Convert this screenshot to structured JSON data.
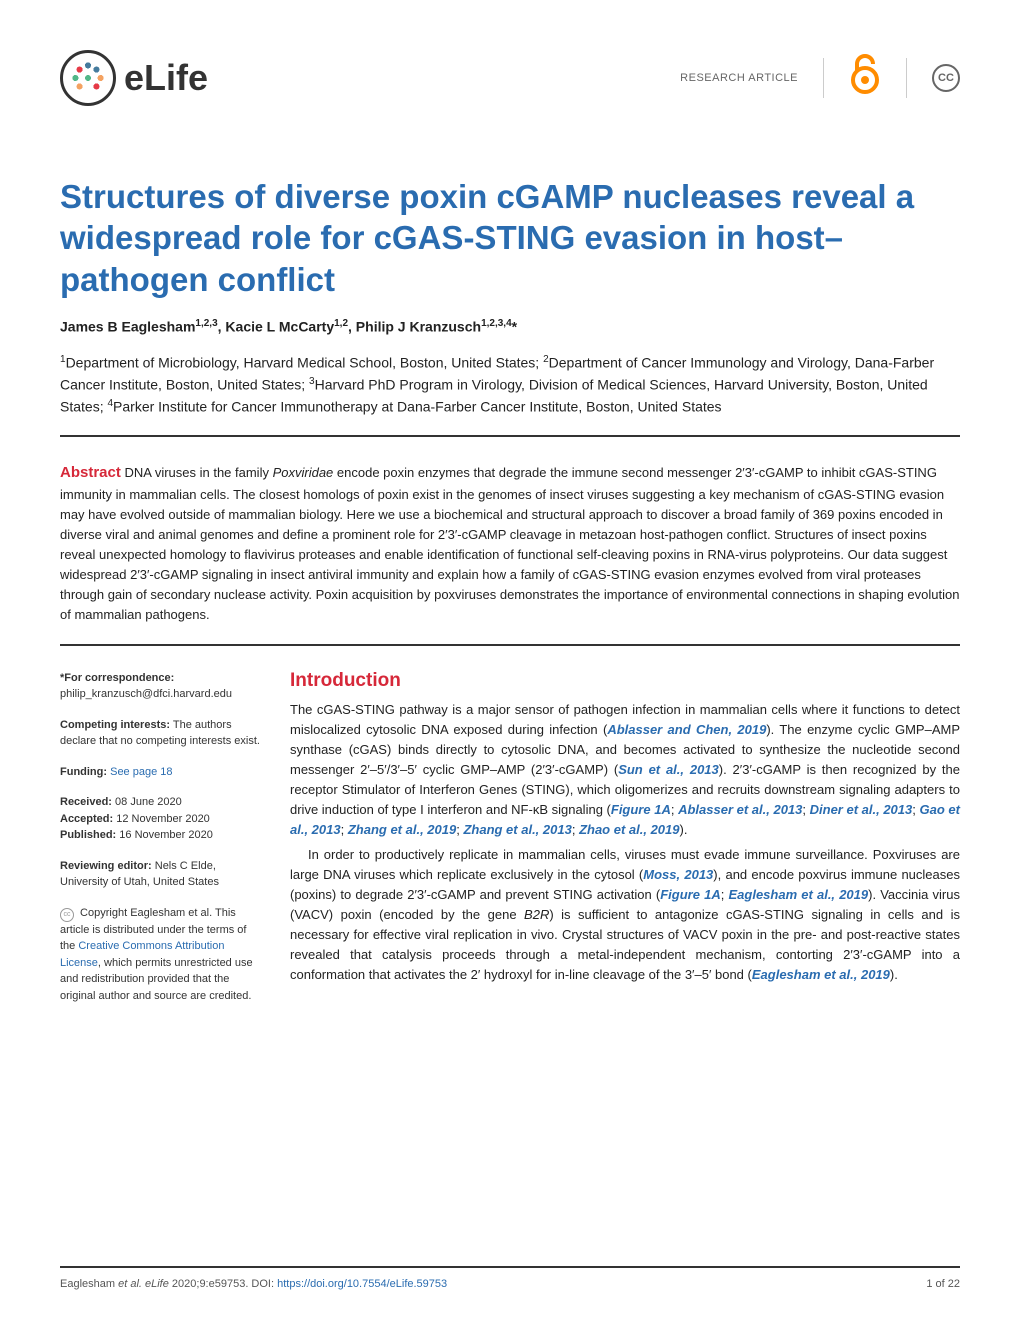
{
  "header": {
    "logo_text": "eLife",
    "article_type": "RESEARCH ARTICLE",
    "oa_symbol": "∂",
    "cc_label": "CC"
  },
  "title": "Structures of diverse poxin cGAMP nucleases reveal a widespread role for cGAS-STING evasion in host–pathogen conflict",
  "authors_html": "James B Eaglesham<sup>1,2,3</sup>, Kacie L McCarty<sup>1,2</sup>, Philip J Kranzusch<sup>1,2,3,4</sup>*",
  "affiliations_html": "<sup>1</sup>Department of Microbiology, Harvard Medical School, Boston, United States; <sup>2</sup>Department of Cancer Immunology and Virology, Dana-Farber Cancer Institute, Boston, United States; <sup>3</sup>Harvard PhD Program in Virology, Division of Medical Sciences, Harvard University, Boston, United States; <sup>4</sup>Parker Institute for Cancer Immunotherapy at Dana-Farber Cancer Institute, Boston, United States",
  "abstract_label": "Abstract",
  "abstract_text": " DNA viruses in the family <span class='italic'>Poxviridae</span> encode poxin enzymes that degrade the immune second messenger 2′3′-cGAMP to inhibit cGAS-STING immunity in mammalian cells. The closest homologs of poxin exist in the genomes of insect viruses suggesting a key mechanism of cGAS-STING evasion may have evolved outside of mammalian biology. Here we use a biochemical and structural approach to discover a broad family of 369 poxins encoded in diverse viral and animal genomes and define a prominent role for 2′3′-cGAMP cleavage in metazoan host-pathogen conflict. Structures of insect poxins reveal unexpected homology to flavivirus proteases and enable identification of functional self-cleaving poxins in RNA-virus polyproteins. Our data suggest widespread 2′3′-cGAMP signaling in insect antiviral immunity and explain how a family of cGAS-STING evasion enzymes evolved from viral proteases through gain of secondary nuclease activity. Poxin acquisition by poxviruses demonstrates the importance of environmental connections in shaping evolution of mammalian pathogens.",
  "sidebar": {
    "correspondence_label": "*For correspondence:",
    "correspondence_email": "philip_kranzusch@dfci.harvard.edu",
    "competing_label": "Competing interests:",
    "competing_text": " The authors declare that no competing interests exist.",
    "funding_label": "Funding:",
    "funding_link": " See page 18",
    "received_label": "Received:",
    "received_date": " 08 June 2020",
    "accepted_label": "Accepted:",
    "accepted_date": " 12 November 2020",
    "published_label": "Published:",
    "published_date": " 16 November 2020",
    "reviewing_label": "Reviewing editor:",
    "reviewing_text": " Nels C Elde, University of Utah, United States",
    "copyright_text": " Copyright Eaglesham et al. This article is distributed under the terms of the ",
    "license_link": "Creative Commons Attribution License",
    "copyright_tail": ", which permits unrestricted use and redistribution provided that the original author and source are credited."
  },
  "intro_label": "Introduction",
  "intro_p1": "The cGAS-STING pathway is a major sensor of pathogen infection in mammalian cells where it functions to detect mislocalized cytosolic DNA exposed during infection (<span class='ref-link'>Ablasser and Chen, 2019</span>). The enzyme cyclic GMP–AMP synthase (cGAS) binds directly to cytosolic DNA, and becomes activated to synthesize the nucleotide second messenger 2′–5′/3′–5′ cyclic GMP–AMP (2′3′-cGAMP) (<span class='ref-link'>Sun et al., 2013</span>). 2′3′-cGAMP is then recognized by the receptor Stimulator of Interferon Genes (STING), which oligomerizes and recruits downstream signaling adapters to drive induction of type I interferon and NF-κB signaling (<span class='fig-link'>Figure 1A</span>; <span class='ref-link'>Ablasser et al., 2013</span>; <span class='ref-link'>Diner et al., 2013</span>; <span class='ref-link'>Gao et al., 2013</span>; <span class='ref-link'>Zhang et al., 2019</span>; <span class='ref-link'>Zhang et al., 2013</span>; <span class='ref-link'>Zhao et al., 2019</span>).",
  "intro_p2": "In order to productively replicate in mammalian cells, viruses must evade immune surveillance. Poxviruses are large DNA viruses which replicate exclusively in the cytosol (<span class='ref-link'>Moss, 2013</span>), and encode poxvirus immune nucleases (poxins) to degrade 2′3′-cGAMP and prevent STING activation (<span class='fig-link'>Figure 1A</span>; <span class='ref-link'>Eaglesham et al., 2019</span>). Vaccinia virus (VACV) poxin (encoded by the gene <span class='italic'>B2R</span>) is sufficient to antagonize cGAS-STING signaling in cells and is necessary for effective viral replication in vivo. Crystal structures of VACV poxin in the pre- and post-reactive states revealed that catalysis proceeds through a metal-independent mechanism, contorting 2′3′-cGAMP into a conformation that activates the 2′ hydroxyl for in-line cleavage of the 3′–5′ bond (<span class='ref-link'>Eaglesham et al., 2019</span>).",
  "footer": {
    "citation": "Eaglesham <span class='italic'>et al. eLife</span> 2020;9:e59753. DOI: ",
    "doi": "https://doi.org/10.7554/eLife.59753",
    "page": "1 of 22"
  }
}
